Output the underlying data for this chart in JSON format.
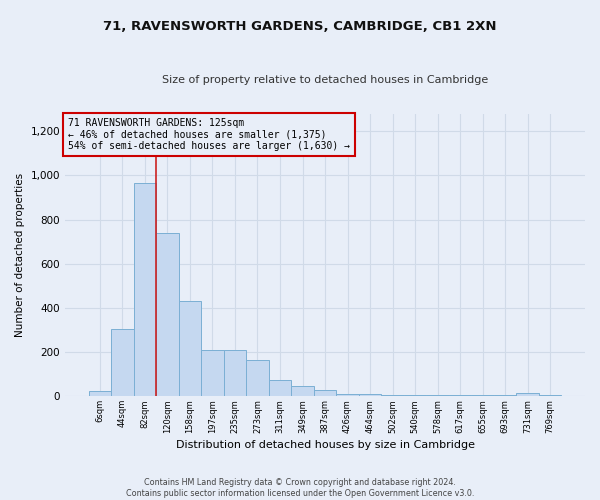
{
  "title1": "71, RAVENSWORTH GARDENS, CAMBRIDGE, CB1 2XN",
  "title2": "Size of property relative to detached houses in Cambridge",
  "xlabel": "Distribution of detached houses by size in Cambridge",
  "ylabel": "Number of detached properties",
  "categories": [
    "6sqm",
    "44sqm",
    "82sqm",
    "120sqm",
    "158sqm",
    "197sqm",
    "235sqm",
    "273sqm",
    "311sqm",
    "349sqm",
    "387sqm",
    "426sqm",
    "464sqm",
    "502sqm",
    "540sqm",
    "578sqm",
    "617sqm",
    "655sqm",
    "693sqm",
    "731sqm",
    "769sqm"
  ],
  "values": [
    25,
    305,
    965,
    740,
    430,
    210,
    210,
    165,
    75,
    48,
    30,
    10,
    10,
    5,
    5,
    5,
    5,
    5,
    5,
    13,
    5
  ],
  "bar_color": "#c5d8f0",
  "bar_edge_color": "#7bafd4",
  "annotation_text1": "71 RAVENSWORTH GARDENS: 125sqm",
  "annotation_text2": "← 46% of detached houses are smaller (1,375)",
  "annotation_text3": "54% of semi-detached houses are larger (1,630) →",
  "vline_color": "#cc2222",
  "box_edge_color": "#cc0000",
  "footer1": "Contains HM Land Registry data © Crown copyright and database right 2024.",
  "footer2": "Contains public sector information licensed under the Open Government Licence v3.0.",
  "ylim": [
    0,
    1280
  ],
  "yticks": [
    0,
    200,
    400,
    600,
    800,
    1000,
    1200
  ],
  "background_color": "#e8eef8",
  "grid_color": "#d0dae8",
  "vline_x_index": 2.5
}
